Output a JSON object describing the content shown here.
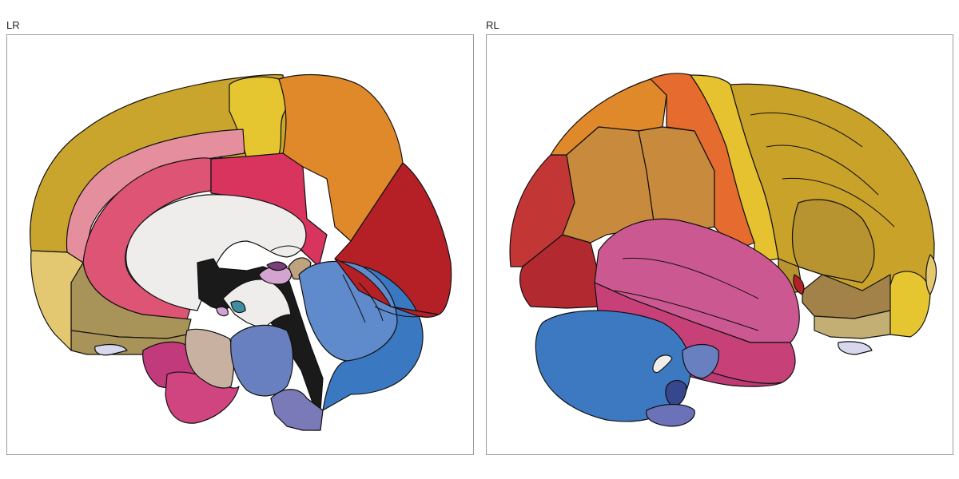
{
  "panels": [
    {
      "title": "LR",
      "view": "medial"
    },
    {
      "title": "RL",
      "view": "lateral"
    }
  ],
  "colors": {
    "superior_frontal": "#C9A52D",
    "paracentral": "#E6C630",
    "precuneus_top": "#E0892A",
    "cuneus": "#B52026",
    "rostral_cingulate": "#E58F9E",
    "posterior_cingulate": "#DD5474",
    "isthmus": "#D8345E",
    "corpus_callosum": "#EEEDEB",
    "ventricle": "#1A1A1A",
    "medial_orbitofrontal": "#A89358",
    "frontal_pole": "#E3C871",
    "temporal_pole": "#C13A7B",
    "entorhinal": "#D04480",
    "parahippocampal": "#C9B1A2",
    "fusiform": "#6880BF",
    "lingual": "#5F8ACB",
    "lateral_occipital": "#3A79C2",
    "brainstem": "#7A7AB8",
    "olfactory": "#D7D7EE",
    "small_mauve": "#D3A4CF",
    "small_purple": "#7B3E78",
    "small_teal": "#3E8DA0",
    "small_tan": "#BFA27E",
    "pars_opercularis": "#C88A3C",
    "precentral": "#E56B2F",
    "postcentral": "#E7C230",
    "supramarginal": "#C9A22A",
    "inferior_parietal": "#B89431",
    "superior_temporal": "#CB5890",
    "middle_temporal": "#C84078",
    "inferior_temporal_dark": "#BE3A75",
    "rostral_middle_frontal": "#C33636",
    "lateral_orbitofrontal": "#B22A30",
    "occipital_lower": "#A28249",
    "occipital_bottom": "#C3AE73",
    "cerebellum": "#3C79C1",
    "cerebellum_dark": "#37478E",
    "cerebellum_stem": "#6B72B7"
  }
}
